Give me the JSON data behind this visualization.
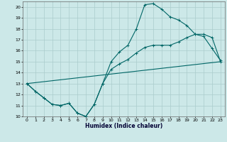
{
  "xlabel": "Humidex (Indice chaleur)",
  "bg_color": "#cce8e8",
  "grid_color": "#aacccc",
  "line_color": "#006666",
  "xlim": [
    -0.5,
    23.5
  ],
  "ylim": [
    10,
    20.5
  ],
  "xticks": [
    0,
    1,
    2,
    3,
    4,
    5,
    6,
    7,
    8,
    9,
    10,
    11,
    12,
    13,
    14,
    15,
    16,
    17,
    18,
    19,
    20,
    21,
    22,
    23
  ],
  "yticks": [
    10,
    11,
    12,
    13,
    14,
    15,
    16,
    17,
    18,
    19,
    20
  ],
  "line1_x": [
    0,
    1,
    2,
    3,
    4,
    5,
    6,
    7,
    8,
    9,
    10,
    11,
    12,
    13,
    14,
    15,
    16,
    17,
    18,
    19,
    20,
    21,
    22,
    23
  ],
  "line1_y": [
    13,
    12.3,
    11.7,
    11.1,
    11.0,
    11.2,
    10.3,
    10.0,
    11.1,
    13.0,
    15.0,
    15.9,
    16.5,
    18.0,
    20.2,
    20.3,
    19.8,
    19.1,
    18.8,
    18.3,
    17.5,
    17.3,
    16.2,
    15.1
  ],
  "line2_x": [
    0,
    1,
    2,
    3,
    4,
    5,
    6,
    7,
    8,
    9,
    10,
    11,
    12,
    13,
    14,
    15,
    16,
    17,
    18,
    19,
    20,
    21,
    22,
    23
  ],
  "line2_y": [
    13,
    12.3,
    11.7,
    11.1,
    11.0,
    11.2,
    10.3,
    10.0,
    11.1,
    13.0,
    14.3,
    14.8,
    15.2,
    15.8,
    16.3,
    16.5,
    16.5,
    16.5,
    16.8,
    17.2,
    17.5,
    17.5,
    17.2,
    15.0
  ],
  "line3_x": [
    0,
    23
  ],
  "line3_y": [
    13,
    15.0
  ]
}
